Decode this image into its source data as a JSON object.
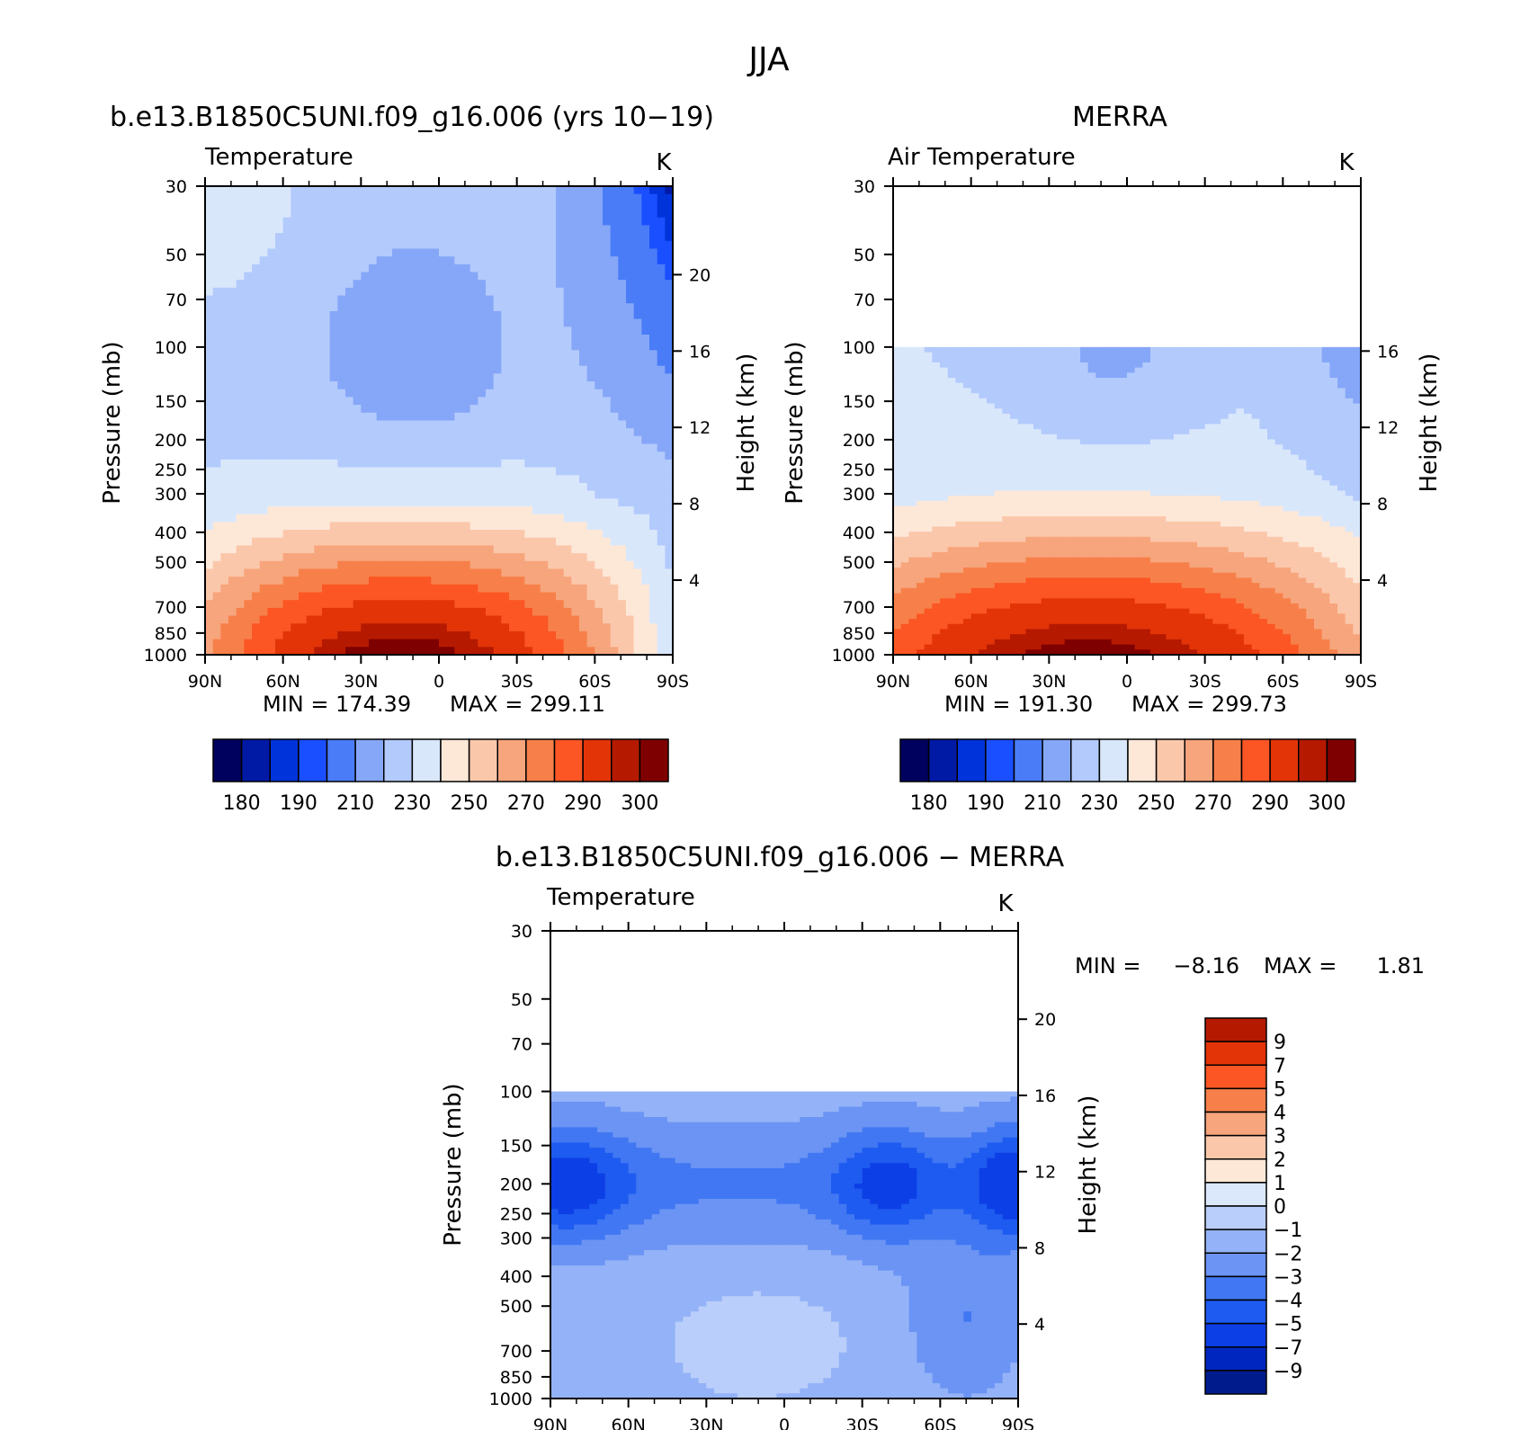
{
  "title": "JJA",
  "chart_data": [
    {
      "type": "heatmap",
      "panel_title": "b.e13.B1850C5UNI.f09_g16.006 (yrs 10−19)",
      "field_label": "Temperature",
      "units": "K",
      "xlabel": "",
      "ylabel": "Pressure (mb)",
      "ylabel_right": "Height (km)",
      "x_ticks": [
        "90N",
        "60N",
        "30N",
        "0",
        "30S",
        "60S",
        "90S"
      ],
      "y_ticks": [
        30,
        50,
        70,
        100,
        150,
        200,
        250,
        300,
        400,
        500,
        700,
        850,
        1000
      ],
      "y_scale": "log",
      "y_range": [
        1000,
        30
      ],
      "height_ticks": [
        20,
        16,
        12,
        8,
        4
      ],
      "min_label": "MIN = 174.39",
      "max_label": "MAX = 299.11",
      "min": 174.39,
      "max": 299.11,
      "colorbar_labels": [
        "180",
        "190",
        "210",
        "230",
        "250",
        "270",
        "290",
        "300"
      ],
      "levels": [
        175,
        180,
        185,
        190,
        200,
        210,
        220,
        230,
        240,
        250,
        260,
        270,
        280,
        290,
        295,
        300
      ],
      "data_top_mb": 30,
      "field": "model"
    },
    {
      "type": "heatmap",
      "panel_title": "MERRA",
      "field_label": "Air Temperature",
      "units": "K",
      "xlabel": "",
      "ylabel": "Pressure (mb)",
      "ylabel_right": "Height (km)",
      "x_ticks": [
        "90N",
        "60N",
        "30N",
        "0",
        "30S",
        "60S",
        "90S"
      ],
      "y_ticks": [
        30,
        50,
        70,
        100,
        150,
        200,
        250,
        300,
        400,
        500,
        700,
        850,
        1000
      ],
      "y_scale": "log",
      "y_range": [
        1000,
        30
      ],
      "height_ticks": [
        16,
        12,
        8,
        4
      ],
      "min_label": "MIN = 191.30",
      "max_label": "MAX = 299.73",
      "min": 191.3,
      "max": 299.73,
      "colorbar_labels": [
        "180",
        "190",
        "210",
        "230",
        "250",
        "270",
        "290",
        "300"
      ],
      "levels": [
        175,
        180,
        185,
        190,
        200,
        210,
        220,
        230,
        240,
        250,
        260,
        270,
        280,
        290,
        295,
        300
      ],
      "data_top_mb": 100,
      "field": "obs"
    },
    {
      "type": "heatmap",
      "panel_title": "b.e13.B1850C5UNI.f09_g16.006 − MERRA",
      "field_label": "Temperature",
      "units": "K",
      "xlabel": "",
      "ylabel": "Pressure (mb)",
      "ylabel_right": "Height (km)",
      "x_ticks": [
        "90N",
        "60N",
        "30N",
        "0",
        "30S",
        "60S",
        "90S"
      ],
      "y_ticks": [
        30,
        50,
        70,
        100,
        150,
        200,
        250,
        300,
        400,
        500,
        700,
        850,
        1000
      ],
      "y_scale": "log",
      "y_range": [
        1000,
        30
      ],
      "height_ticks": [
        20,
        16,
        12,
        8,
        4
      ],
      "min_label": "MIN =",
      "min_value": "−8.16",
      "max_label": "MAX =",
      "max_value": "1.81",
      "min": -8.16,
      "max": 1.81,
      "colorbar_labels": [
        "9",
        "7",
        "5",
        "4",
        "3",
        "2",
        "1",
        "0",
        "−1",
        "−2",
        "−3",
        "−4",
        "−5",
        "−7",
        "−9"
      ],
      "levels": [
        -9,
        -7,
        -5,
        -4,
        -3,
        -2,
        -1,
        0,
        1,
        2,
        3,
        4,
        5,
        7,
        9
      ],
      "data_top_mb": 100,
      "field": "diff"
    }
  ],
  "colors": {
    "warm_cool_16": [
      "#00005e",
      "#001aa6",
      "#0033d9",
      "#1a4fff",
      "#4a7cf7",
      "#86a7f8",
      "#b3cafc",
      "#d9e7fb",
      "#fde8d8",
      "#fbc7ab",
      "#f7a57c",
      "#f7804a",
      "#fb5624",
      "#e33408",
      "#b51a00",
      "#7f0000"
    ],
    "diff_16": [
      "#001c8c",
      "#0026c0",
      "#0d3fe6",
      "#1e5bf0",
      "#4177f2",
      "#6b94f4",
      "#94b2f7",
      "#b9cefa",
      "#dbe8fc",
      "#fde8d8",
      "#fbc7ab",
      "#f7a57c",
      "#f7804a",
      "#fb5624",
      "#e33408",
      "#b51a00"
    ]
  }
}
